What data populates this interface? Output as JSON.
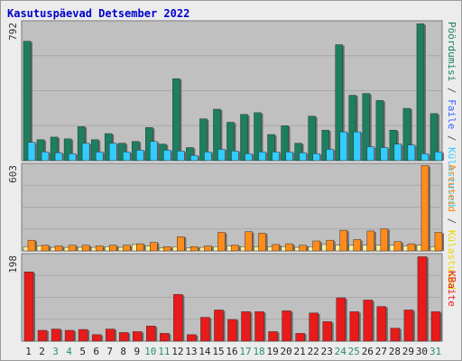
{
  "title": "Kasutuspäevad Detsember 2022",
  "colors": {
    "visits": "#1b7f60",
    "hits": "#33ccff",
    "pages": "#fff09a",
    "traffic_a": "#ff8c1a",
    "bandwidth": "#e81a1a",
    "weekend_day": "#26906a",
    "weekday_day": "#222222",
    "panel_bg": "#c0c0c0",
    "frame_bg": "#ececec"
  },
  "chart_data": [
    {
      "type": "bar",
      "panel": "top",
      "y_max_label": "792",
      "ylim": [
        0,
        792
      ],
      "categories": [
        "1",
        "2",
        "3",
        "4",
        "5",
        "6",
        "7",
        "8",
        "9",
        "10",
        "11",
        "12",
        "13",
        "14",
        "15",
        "16",
        "17",
        "18",
        "19",
        "20",
        "21",
        "22",
        "23",
        "24",
        "25",
        "26",
        "27",
        "28",
        "29",
        "30",
        "31"
      ],
      "series": [
        {
          "name": "Külastused",
          "color_key": "visits",
          "values": [
            685,
            120,
            135,
            125,
            195,
            120,
            155,
            100,
            110,
            190,
            95,
            470,
            75,
            240,
            295,
            220,
            265,
            275,
            150,
            200,
            100,
            255,
            175,
            665,
            375,
            385,
            345,
            175,
            300,
            785,
            270
          ]
        },
        {
          "name": "Faile",
          "color_key": "hits",
          "values": [
            105,
            50,
            45,
            40,
            100,
            50,
            100,
            50,
            60,
            110,
            60,
            55,
            30,
            50,
            65,
            55,
            40,
            50,
            50,
            50,
            45,
            40,
            65,
            165,
            165,
            80,
            75,
            95,
            90,
            40,
            50
          ]
        }
      ],
      "legend": [
        "Külastused",
        "Faile",
        "Pöördumisi"
      ]
    },
    {
      "type": "bar",
      "panel": "middle",
      "y_max_label": "603",
      "ylim": [
        0,
        603
      ],
      "categories": [
        "1",
        "2",
        "3",
        "4",
        "5",
        "6",
        "7",
        "8",
        "9",
        "10",
        "11",
        "12",
        "13",
        "14",
        "15",
        "16",
        "17",
        "18",
        "19",
        "20",
        "21",
        "22",
        "23",
        "24",
        "25",
        "26",
        "27",
        "28",
        "29",
        "30",
        "31"
      ],
      "series": [
        {
          "name": "Külastused",
          "color_key": "pages",
          "values": [
            30,
            35,
            25,
            25,
            25,
            25,
            30,
            25,
            45,
            35,
            20,
            30,
            20,
            25,
            30,
            35,
            30,
            30,
            30,
            30,
            25,
            30,
            45,
            40,
            40,
            40,
            40,
            40,
            35,
            40,
            30
          ]
        },
        {
          "name": "Arvuteid",
          "color_key": "traffic_a",
          "values": [
            75,
            40,
            35,
            40,
            40,
            35,
            40,
            40,
            50,
            60,
            30,
            100,
            30,
            35,
            130,
            40,
            135,
            125,
            45,
            50,
            40,
            70,
            75,
            145,
            80,
            140,
            155,
            65,
            50,
            600,
            130
          ]
        }
      ],
      "legend": [
        "Arvuteid",
        "Külastused"
      ]
    },
    {
      "type": "bar",
      "panel": "bottom",
      "y_max_label": "198",
      "ylim": [
        0,
        198
      ],
      "categories": [
        "1",
        "2",
        "3",
        "4",
        "5",
        "6",
        "7",
        "8",
        "9",
        "10",
        "11",
        "12",
        "13",
        "14",
        "15",
        "16",
        "17",
        "18",
        "19",
        "20",
        "21",
        "22",
        "23",
        "24",
        "25",
        "26",
        "27",
        "28",
        "29",
        "30",
        "31"
      ],
      "series": [
        {
          "name": "KBaite",
          "color_key": "bandwidth",
          "values": [
            160,
            25,
            28,
            25,
            27,
            15,
            28,
            20,
            22,
            35,
            18,
            108,
            15,
            55,
            72,
            50,
            68,
            68,
            22,
            70,
            18,
            65,
            45,
            100,
            68,
            95,
            80,
            30,
            72,
            195,
            68
          ]
        }
      ],
      "legend": [
        "KBaite"
      ]
    }
  ],
  "x_axis": {
    "weekend_days": [
      "3",
      "4",
      "10",
      "11",
      "17",
      "18",
      "24",
      "25",
      "31"
    ]
  }
}
